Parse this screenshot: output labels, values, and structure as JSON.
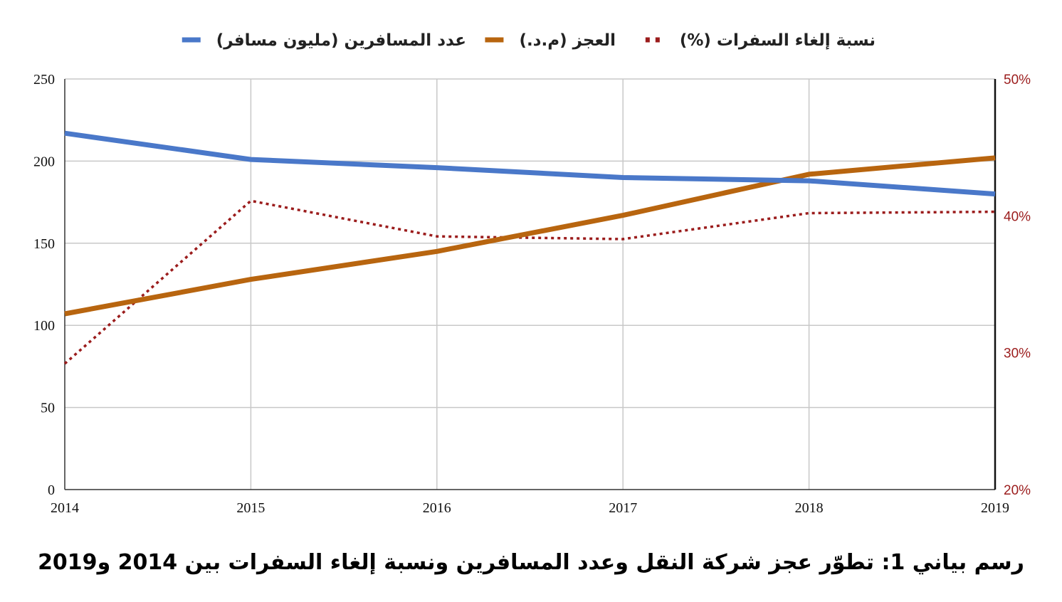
{
  "caption": "رسم بياني 1: تطوّر عجز شركة النقل وعدد المسافرين ونسبة إلغاء السفرات بين 2014 و2019",
  "chart_data": {
    "type": "line",
    "title": "",
    "x": [
      "2014",
      "2015",
      "2016",
      "2017",
      "2018",
      "2019"
    ],
    "left_axis": {
      "ylim": [
        0,
        250
      ],
      "ticks": [
        "0",
        "50",
        "100",
        "150",
        "200",
        "250"
      ]
    },
    "right_axis": {
      "ylim": [
        20,
        50
      ],
      "ticks": [
        "20%",
        "30%",
        "40%",
        "50%"
      ],
      "color": "#9b1c1c"
    },
    "grid": true,
    "legend_position": "top",
    "series": [
      {
        "name": "نسبة إلغاء السفرات (%)",
        "axis": "right",
        "style": "dotted",
        "color": "#9b1c1c",
        "values": [
          29.2,
          41.1,
          38.5,
          38.3,
          40.2,
          40.3
        ]
      },
      {
        "name": "العجز (م.د.)",
        "axis": "left",
        "style": "solid",
        "color": "#b8650f",
        "values": [
          107,
          128,
          145,
          167,
          192,
          202
        ]
      },
      {
        "name": "عدد المسافرين (مليون مسافر)",
        "axis": "left",
        "style": "solid",
        "color": "#4a78c9",
        "values": [
          217,
          201,
          196,
          190,
          188,
          180
        ]
      }
    ]
  }
}
